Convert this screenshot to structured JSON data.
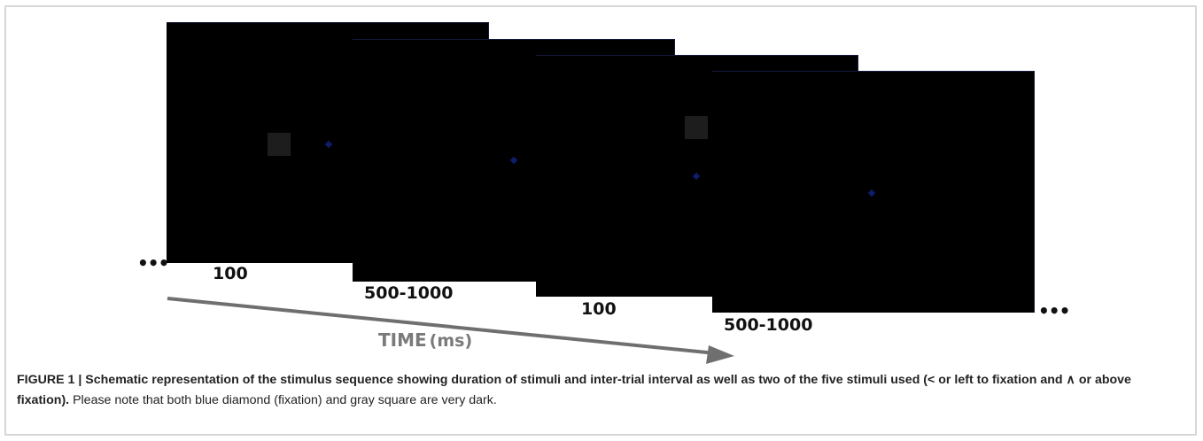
{
  "figure": {
    "durations": {
      "screen1": "100",
      "screen2": "500-1000",
      "screen3": "100",
      "screen4": "500-1000"
    },
    "ellipsis_left": "•••",
    "ellipsis_right": "•••",
    "axis_label": "TIME",
    "axis_unit": "(ms)",
    "colors": {
      "screen_background": "#000000",
      "fixation_diamond": "#0d1d6b",
      "gray_square": "#1d1d1d",
      "arrow": "#6f6f6f"
    }
  },
  "caption": {
    "label": "FIGURE 1 | Schematic representation of the stimulus sequence showing duration of stimuli and inter-trial interval as well as two of the five stimuli used (< or left to fixation and ∧ or above fixation).",
    "text": " Please note that both blue diamond (fixation) and gray square are very dark."
  }
}
